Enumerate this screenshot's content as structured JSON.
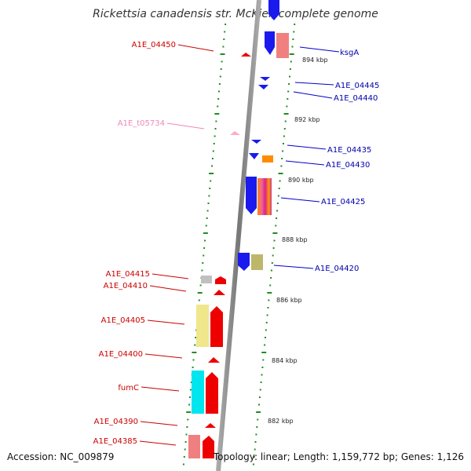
{
  "title": "Rickettsia canadensis str. McKiel, complete genome",
  "footer": {
    "accession": "Accession: NC_009879",
    "topology": "Topology: linear; Length: 1,159,772 bp; Genes: 1,126"
  },
  "colors": {
    "backbone": "#888888",
    "tick": "#228b22",
    "left_label": "#cc0000",
    "right_label": "#0000aa",
    "trna_label": "#ee88bb"
  },
  "ticks": [
    "894 kbp",
    "892 kbp",
    "890 kbp",
    "888 kbp",
    "886 kbp",
    "884 kbp",
    "882 kbp"
  ],
  "labels_right": [
    "ksgA",
    "A1E_04445",
    "A1E_04440",
    "A1E_04435",
    "A1E_04430",
    "A1E_04425",
    "A1E_04420"
  ],
  "labels_left": [
    "A1E_04450",
    "A1E_t05734",
    "A1E_04415",
    "A1E_04410",
    "A1E_04405",
    "A1E_04400",
    "fumC",
    "A1E_04390",
    "A1E_04385"
  ]
}
